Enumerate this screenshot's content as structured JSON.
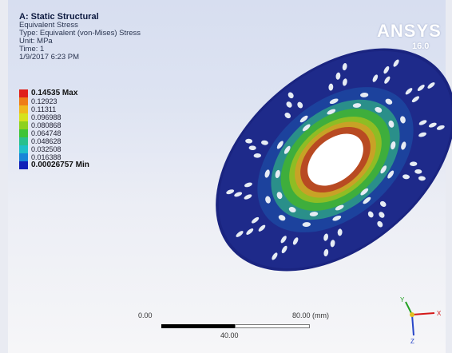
{
  "result": {
    "title": "A: Static Structural",
    "quantity": "Equivalent Stress",
    "type": "Type: Equivalent (von-Mises) Stress",
    "unit": "Unit: MPa",
    "time": "Time: 1",
    "date": "1/9/2017 6:23 PM"
  },
  "legend": [
    {
      "label": "0.14535 Max",
      "color": "#e0201a",
      "bold": true
    },
    {
      "label": "0.12923",
      "color": "#ee7d16"
    },
    {
      "label": "0.11311",
      "color": "#f0b81c"
    },
    {
      "label": "0.096988",
      "color": "#d6e21e"
    },
    {
      "label": "0.080868",
      "color": "#8ed120"
    },
    {
      "label": "0.064748",
      "color": "#3ec437"
    },
    {
      "label": "0.048628",
      "color": "#28c08d"
    },
    {
      "label": "0.032508",
      "color": "#1fbfc9"
    },
    {
      "label": "0.016388",
      "color": "#1885d8"
    },
    {
      "label": "0.00026757 Min",
      "color": "#1020b8",
      "bold": true
    }
  ],
  "logo": {
    "brand": "ANSYS",
    "version": "16.0"
  },
  "scale_bar": {
    "left": "0.00",
    "right": "80.00 (mm)",
    "mid": "40.00"
  },
  "triad": {
    "x": "X",
    "y": "Y",
    "z": "Z"
  },
  "colors": {
    "background_top": "#d7def0",
    "disc_base": "#1e2a8a",
    "hole": "#e6ecf4",
    "hub_hole": "#ffffff"
  }
}
